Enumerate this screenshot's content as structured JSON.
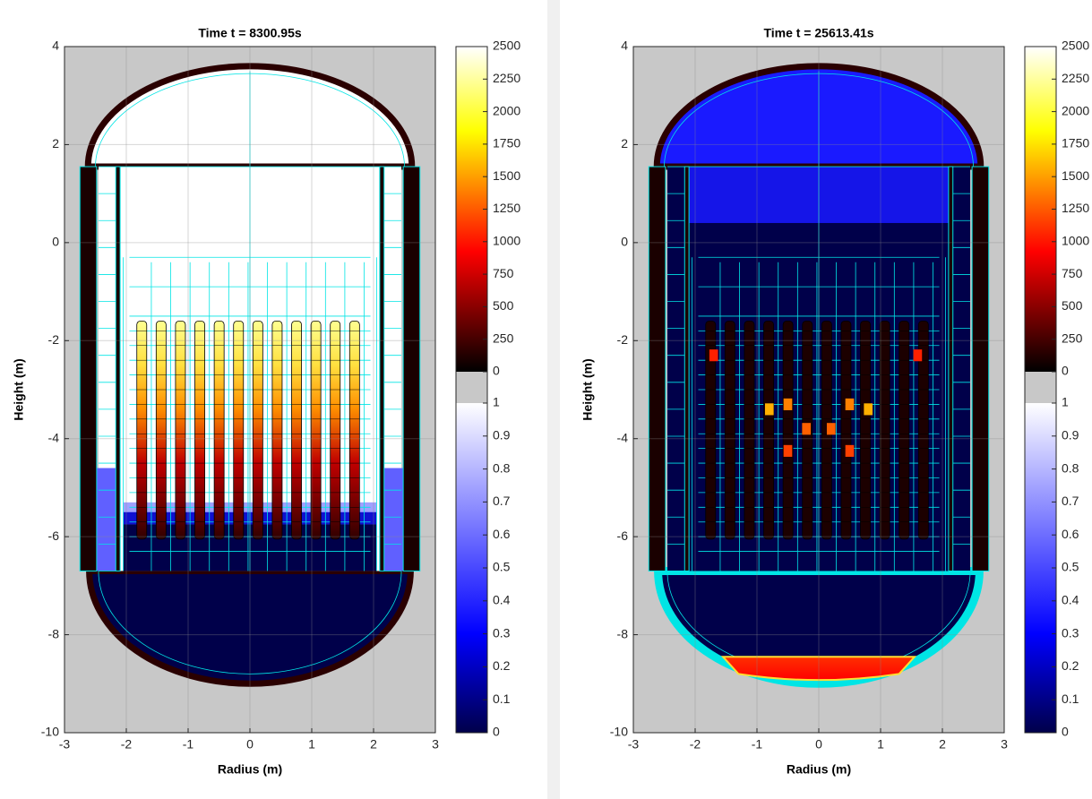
{
  "chart_data": [
    {
      "type": "reactor-map",
      "title": "Time t = 8300.95s",
      "x_label": "Radius (m)",
      "y_label": "Height (m)",
      "xlim": [
        -3,
        3
      ],
      "ylim": [
        -10,
        4
      ],
      "xticks": [
        -3,
        -2,
        -1,
        0,
        1,
        2,
        3
      ],
      "yticks": [
        -10,
        -8,
        -6,
        -4,
        -2,
        0,
        2,
        4
      ],
      "grid": true,
      "colorbar": {
        "temperature_lim": [
          0,
          2500
        ],
        "temperature_ticks": [
          0,
          250,
          500,
          750,
          1000,
          1250,
          1500,
          1750,
          2000,
          2250,
          2500
        ],
        "fraction_lim": [
          0,
          1
        ],
        "fraction_ticks": [
          0,
          0.1,
          0.2,
          0.3,
          0.4,
          0.5,
          0.6,
          0.7,
          0.8,
          0.9,
          1
        ]
      }
    },
    {
      "type": "reactor-map",
      "title": "Time t = 25613.41s",
      "x_label": "Radius (m)",
      "y_label": "Height (m)",
      "xlim": [
        -3,
        3
      ],
      "ylim": [
        -10,
        4
      ],
      "xticks": [
        -3,
        -2,
        -1,
        0,
        1,
        2,
        3
      ],
      "yticks": [
        -10,
        -8,
        -6,
        -4,
        -2,
        0,
        2,
        4
      ],
      "grid": true,
      "colorbar": {
        "temperature_lim": [
          0,
          2500
        ],
        "temperature_ticks": [
          0,
          250,
          500,
          750,
          1000,
          1250,
          1500,
          1750,
          2000,
          2250,
          2500
        ],
        "fraction_lim": [
          0,
          1
        ],
        "fraction_ticks": [
          0,
          0.1,
          0.2,
          0.3,
          0.4,
          0.5,
          0.6,
          0.7,
          0.8,
          0.9,
          1
        ]
      }
    }
  ]
}
